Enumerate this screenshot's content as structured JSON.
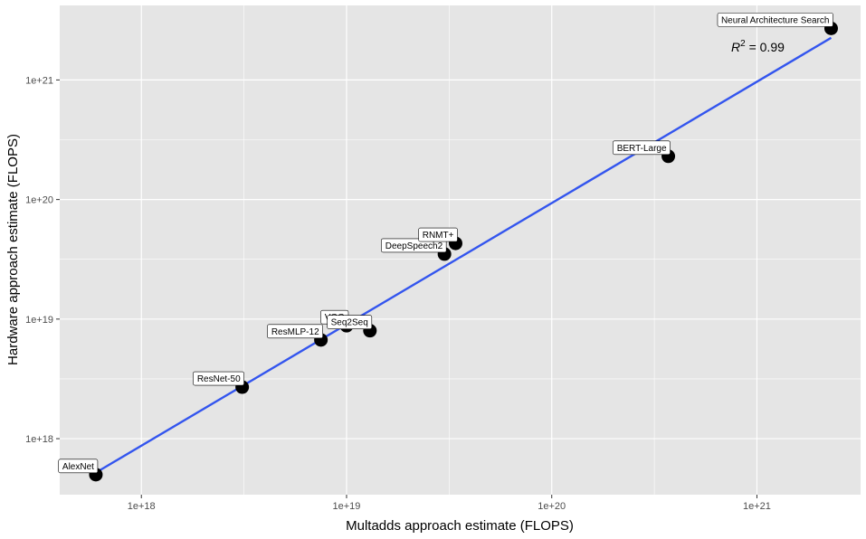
{
  "chart_data": {
    "type": "scatter",
    "xlabel": "Multadds approach estimate (FLOPS)",
    "ylabel": "Hardware approach estimate (FLOPS)",
    "x_scale": "log10",
    "y_scale": "log10",
    "xlim": [
      4e+17,
      3.2e+21
    ],
    "ylim": [
      3.4e+17,
      4.2e+21
    ],
    "x_ticks": [
      1e+18,
      1e+19,
      1e+20,
      1e+21
    ],
    "x_tick_labels": [
      "1e+18",
      "1e+19",
      "1e+20",
      "1e+21"
    ],
    "y_ticks": [
      1e+18,
      1e+19,
      1e+20,
      1e+21
    ],
    "y_tick_labels": [
      "1e+18",
      "1e+19",
      "1e+20",
      "1e+21"
    ],
    "grid": true,
    "points": [
      {
        "label": "AlexNet",
        "x": 6e+17,
        "y": 5e+17
      },
      {
        "label": "ResNet-50",
        "x": 3.1e+18,
        "y": 2.7e+18
      },
      {
        "label": "ResMLP-12",
        "x": 7.5e+18,
        "y": 6.7e+18
      },
      {
        "label": "VGG",
        "x": 1e+19,
        "y": 8.8e+18
      },
      {
        "label": "Seq2Seq",
        "x": 1.3e+19,
        "y": 8e+18
      },
      {
        "label": "DeepSpeech2",
        "x": 3e+19,
        "y": 3.5e+19
      },
      {
        "label": "RNMT+",
        "x": 3.4e+19,
        "y": 4.3e+19
      },
      {
        "label": "BERT-Large",
        "x": 3.7e+20,
        "y": 2.3e+20
      },
      {
        "label": "Neural Architecture Search",
        "x": 2.3e+21,
        "y": 2.7e+21
      }
    ],
    "fit_line": {
      "x": [
        6e+17,
        2.3e+21
      ],
      "y": [
        5.2e+17,
        2.25e+21
      ],
      "color": "#3355EE"
    },
    "annotation": {
      "text_r": "R",
      "text_sup": "2",
      "text_rest": " = 0.99"
    },
    "colors": {
      "panel": "#E5E5E5",
      "grid_major": "#FFFFFF",
      "point": "#000000"
    }
  }
}
